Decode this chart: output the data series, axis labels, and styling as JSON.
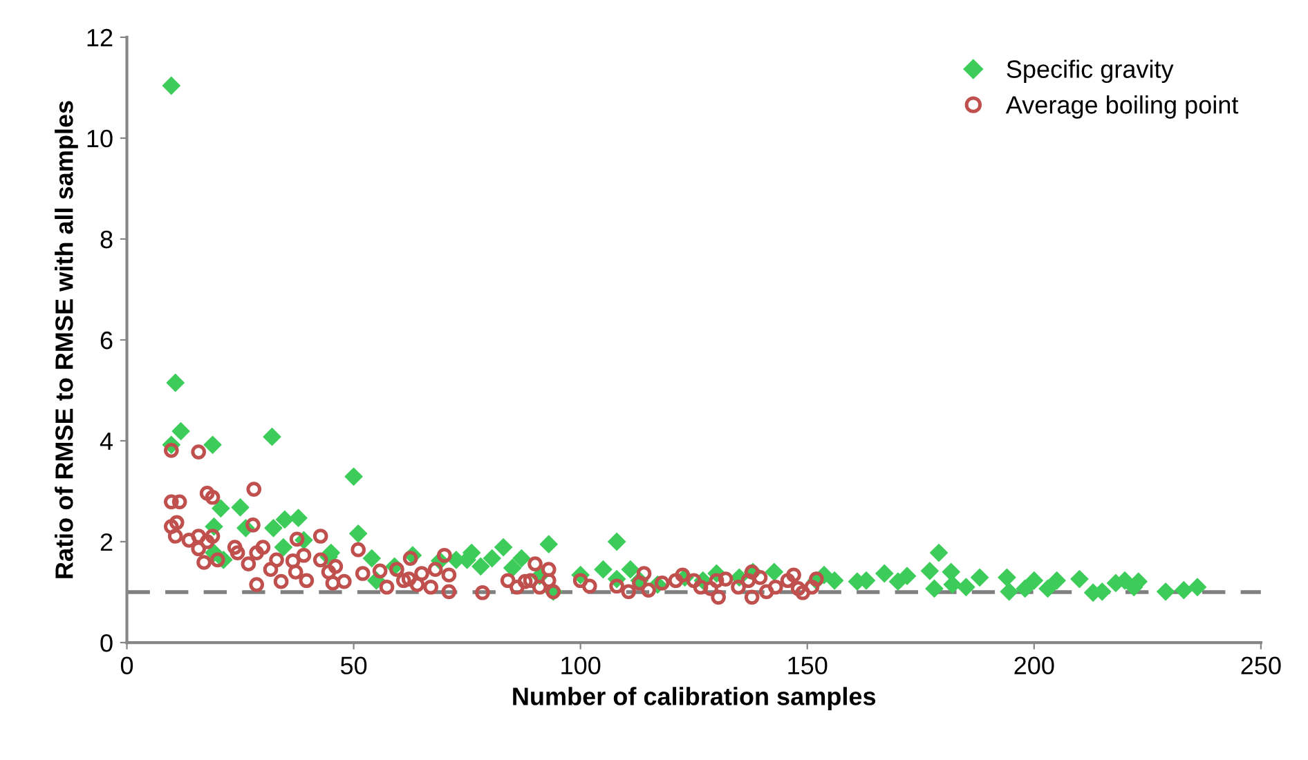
{
  "chart_data": {
    "type": "scatter",
    "xlabel": "Number of calibration samples",
    "ylabel": "Ratio of RMSE to RMSE with all samples",
    "xlim": [
      0,
      250
    ],
    "xticks": [
      0,
      50,
      100,
      150,
      200,
      250
    ],
    "ylim": [
      0,
      12
    ],
    "yticks": [
      0,
      2,
      4,
      6,
      8,
      10,
      12
    ],
    "grid": false,
    "legend": "top right",
    "ref_lines": [
      {
        "axis": "y",
        "value": 1,
        "color": "#7f7f7f",
        "line_style": "dashed"
      }
    ],
    "series": [
      {
        "name": "Specific gravity",
        "color": "#3dcc5a",
        "marker": "diamond",
        "x": [
          9.8,
          10.7,
          11.9,
          9.8,
          18.9,
          32,
          50,
          20.7,
          25,
          19.2,
          26.2,
          32.3,
          34.8,
          37.8,
          51,
          34.5,
          39,
          19.2,
          21.3,
          44.5,
          45,
          54,
          55,
          63,
          59,
          69,
          72.6,
          75,
          76,
          78,
          80.5,
          83,
          85,
          87,
          93,
          91,
          94,
          100,
          105,
          108,
          108,
          111,
          113,
          117,
          123,
          127,
          130,
          135,
          138,
          142.7,
          152,
          153.7,
          156,
          161,
          163,
          167,
          170,
          172,
          177,
          179,
          178,
          181.7,
          182,
          185,
          188,
          194,
          194.5,
          198,
          200,
          203,
          205,
          210,
          213,
          215,
          218,
          220,
          222,
          223,
          229,
          233,
          236
        ],
        "values": [
          11.04,
          5.15,
          4.19,
          3.92,
          3.92,
          4.08,
          3.29,
          2.66,
          2.68,
          2.3,
          2.27,
          2.27,
          2.44,
          2.47,
          2.16,
          1.89,
          2.03,
          1.78,
          1.64,
          1.7,
          1.78,
          1.67,
          1.23,
          1.73,
          1.51,
          1.62,
          1.64,
          1.64,
          1.78,
          1.51,
          1.67,
          1.89,
          1.48,
          1.67,
          1.95,
          1.32,
          1.01,
          1.34,
          1.45,
          1.26,
          2.0,
          1.45,
          1.23,
          1.15,
          1.29,
          1.23,
          1.37,
          1.29,
          1.4,
          1.4,
          1.23,
          1.34,
          1.23,
          1.21,
          1.23,
          1.37,
          1.21,
          1.32,
          1.42,
          1.78,
          1.07,
          1.4,
          1.15,
          1.1,
          1.29,
          1.29,
          1.01,
          1.07,
          1.23,
          1.07,
          1.23,
          1.26,
          0.99,
          1.01,
          1.18,
          1.23,
          1.1,
          1.21,
          1.01,
          1.04,
          1.1
        ]
      },
      {
        "name": "Average boiling point",
        "color": "#c0504d",
        "marker": "circle",
        "x": [
          9.8,
          15.8,
          9.8,
          11.6,
          17.7,
          18.9,
          28,
          9.8,
          11,
          10.7,
          13.7,
          15.8,
          17.7,
          18.9,
          17,
          20,
          15.8,
          23.8,
          26.8,
          28.6,
          27.8,
          24.4,
          28.6,
          30,
          31.7,
          33,
          34,
          36.6,
          37.5,
          37.2,
          39,
          39.6,
          42.7,
          42.7,
          44.5,
          46,
          45.4,
          47.9,
          51,
          52,
          55.8,
          57.3,
          59.5,
          61,
          62.2,
          62.5,
          64,
          65,
          67,
          68,
          70,
          71,
          71,
          78.4,
          84,
          86,
          87.8,
          89,
          90,
          91,
          93,
          93,
          94,
          100,
          102,
          108,
          110.6,
          113,
          114,
          115,
          118,
          121,
          122.5,
          125,
          126.5,
          128.7,
          130,
          130.4,
          132,
          134.8,
          137,
          137.8,
          137.8,
          139.6,
          141,
          143,
          145.7,
          147,
          148,
          149,
          151,
          152
        ],
        "values": [
          3.81,
          3.78,
          2.79,
          2.79,
          2.96,
          2.88,
          3.04,
          2.3,
          2.38,
          2.11,
          2.03,
          2.11,
          2.0,
          2.11,
          1.59,
          1.64,
          1.86,
          1.89,
          1.56,
          1.78,
          2.33,
          1.78,
          1.15,
          1.89,
          1.45,
          1.64,
          1.21,
          1.62,
          2.05,
          1.4,
          1.73,
          1.23,
          2.11,
          1.64,
          1.4,
          1.51,
          1.18,
          1.21,
          1.84,
          1.37,
          1.42,
          1.1,
          1.45,
          1.23,
          1.26,
          1.67,
          1.15,
          1.37,
          1.1,
          1.45,
          1.73,
          1.34,
          1.01,
          0.99,
          1.23,
          1.1,
          1.21,
          1.23,
          1.56,
          1.1,
          1.45,
          1.23,
          1.01,
          1.23,
          1.12,
          1.12,
          1.01,
          1.18,
          1.37,
          1.04,
          1.18,
          1.23,
          1.34,
          1.23,
          1.1,
          1.07,
          1.23,
          0.9,
          1.26,
          1.1,
          1.23,
          0.9,
          1.4,
          1.29,
          1.01,
          1.1,
          1.23,
          1.34,
          1.07,
          0.99,
          1.1,
          1.26
        ]
      }
    ]
  }
}
